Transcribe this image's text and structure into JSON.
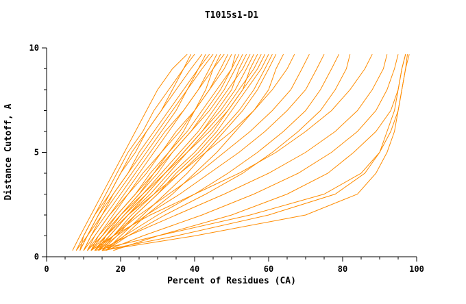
{
  "chart_data": {
    "type": "line",
    "title": "T1015s1-D1",
    "xlabel": "Percent of Residues (CA)",
    "ylabel": "Distance Cutoff, A",
    "xlim": [
      0,
      100
    ],
    "ylim": [
      0,
      10
    ],
    "x_major_ticks": [
      0,
      20,
      40,
      60,
      80,
      100
    ],
    "x_minor_step": 5,
    "y_major_ticks": [
      0,
      5,
      10
    ],
    "y_minor_step": 1,
    "grid": false,
    "legend": "none",
    "line_color": "#ff8c00",
    "axis_color": "#000000",
    "y_levels": [
      0.3,
      1,
      2,
      3,
      4,
      5,
      6,
      7,
      8,
      9,
      9.7
    ],
    "series_x": [
      [
        7,
        9,
        12,
        15,
        18,
        21,
        24,
        27,
        30,
        34,
        38
      ],
      [
        8,
        10,
        13,
        17,
        20,
        24,
        27,
        31,
        35,
        39,
        42
      ],
      [
        9,
        11,
        15,
        18,
        22,
        26,
        30,
        34,
        38,
        42,
        45
      ],
      [
        10,
        12,
        16,
        20,
        24,
        28,
        32,
        37,
        41,
        45,
        48
      ],
      [
        11,
        14,
        18,
        22,
        27,
        31,
        35,
        40,
        44,
        48,
        50
      ],
      [
        12,
        15,
        19,
        24,
        28,
        33,
        38,
        42,
        46,
        50,
        52
      ],
      [
        13,
        16,
        21,
        26,
        31,
        36,
        41,
        45,
        49,
        53,
        55
      ],
      [
        14,
        17,
        22,
        28,
        33,
        38,
        43,
        48,
        52,
        56,
        58
      ],
      [
        15,
        19,
        24,
        30,
        35,
        41,
        46,
        50,
        54,
        58,
        60
      ],
      [
        16,
        20,
        26,
        32,
        38,
        43,
        48,
        53,
        57,
        60,
        62
      ],
      [
        9,
        10,
        13,
        16,
        19,
        22,
        26,
        29,
        33,
        37,
        40
      ],
      [
        8,
        11,
        14,
        18,
        22,
        25,
        29,
        33,
        37,
        41,
        44
      ],
      [
        10,
        13,
        17,
        21,
        25,
        29,
        33,
        37,
        41,
        44,
        46
      ],
      [
        11,
        13,
        17,
        22,
        26,
        31,
        36,
        40,
        44,
        47,
        49
      ],
      [
        12,
        14,
        19,
        24,
        29,
        34,
        39,
        44,
        48,
        51,
        53
      ],
      [
        13,
        17,
        22,
        27,
        32,
        37,
        42,
        47,
        51,
        54,
        56
      ],
      [
        14,
        18,
        23,
        29,
        34,
        40,
        45,
        49,
        53,
        57,
        59
      ],
      [
        15,
        18,
        24,
        30,
        36,
        42,
        47,
        52,
        56,
        59,
        61
      ],
      [
        12,
        15,
        20,
        25,
        29,
        33,
        37,
        40,
        43,
        45,
        47
      ],
      [
        10,
        12,
        15,
        19,
        23,
        27,
        31,
        35,
        38,
        41,
        43
      ],
      [
        13,
        16,
        20,
        25,
        30,
        34,
        39,
        43,
        47,
        50,
        51
      ],
      [
        14,
        16,
        21,
        27,
        32,
        37,
        42,
        46,
        50,
        52,
        54
      ],
      [
        11,
        15,
        20,
        26,
        32,
        38,
        44,
        49,
        53,
        55,
        57
      ],
      [
        9,
        11,
        14,
        17,
        20,
        23,
        27,
        31,
        34,
        37,
        39
      ],
      [
        16,
        21,
        27,
        34,
        40,
        46,
        51,
        56,
        60,
        62,
        64
      ],
      [
        12,
        16,
        22,
        29,
        36,
        43,
        50,
        56,
        61,
        65,
        67
      ],
      [
        13,
        18,
        25,
        33,
        41,
        48,
        55,
        61,
        66,
        69,
        71
      ],
      [
        14,
        19,
        27,
        36,
        44,
        52,
        59,
        65,
        70,
        73,
        75
      ],
      [
        15,
        21,
        30,
        40,
        49,
        57,
        64,
        70,
        74,
        77,
        79
      ],
      [
        16,
        22,
        32,
        43,
        53,
        61,
        68,
        74,
        78,
        81,
        82
      ],
      [
        12,
        18,
        28,
        40,
        52,
        62,
        70,
        77,
        82,
        86,
        88
      ],
      [
        14,
        22,
        35,
        48,
        60,
        70,
        78,
        84,
        88,
        91,
        92
      ],
      [
        16,
        26,
        42,
        56,
        68,
        77,
        84,
        89,
        92,
        94,
        95
      ],
      [
        18,
        30,
        50,
        65,
        76,
        83,
        89,
        93,
        95,
        96,
        97
      ],
      [
        15,
        35,
        60,
        78,
        86,
        90,
        93,
        95,
        96,
        97,
        98
      ],
      [
        15,
        40,
        70,
        84,
        89,
        92,
        94,
        95,
        96,
        97,
        97.5
      ],
      [
        13,
        30,
        55,
        75,
        85,
        90,
        92,
        94,
        95,
        96,
        97
      ]
    ]
  }
}
